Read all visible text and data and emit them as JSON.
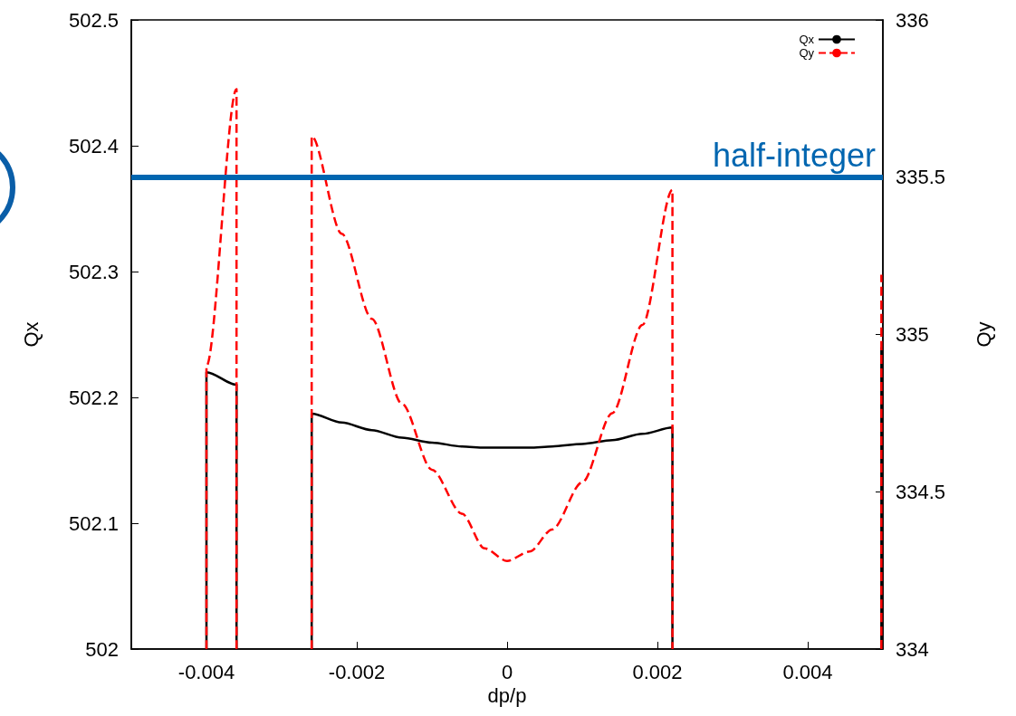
{
  "chart_data": {
    "type": "line",
    "xlabel": "dp/p",
    "ylabel": "Qx",
    "y2label": "Qy",
    "xlim": [
      -0.005,
      0.005
    ],
    "xticks": [
      -0.004,
      -0.002,
      0,
      0.002,
      0.004
    ],
    "ylim": [
      502,
      502.5
    ],
    "yticks": [
      502,
      502.1,
      502.2,
      502.3,
      502.4,
      502.5
    ],
    "y2lim": [
      334,
      336
    ],
    "y2ticks": [
      334,
      334.5,
      335,
      335.5,
      336
    ],
    "grid": false,
    "legend": "top right",
    "marker": "none",
    "series": [
      {
        "name": "Qx",
        "color": "#000000",
        "line_style": "solid",
        "x": [
          -0.004,
          -0.004,
          -0.0036,
          -0.0036,
          -0.0031,
          -0.0026,
          -0.0026,
          -0.0022,
          -0.0018,
          -0.0014,
          -0.001,
          -0.0006,
          -0.0003,
          0,
          0.0003,
          0.0006,
          0.001,
          0.0014,
          0.0018,
          0.0022,
          0.0022,
          0.0035,
          0.00498,
          0.00498
        ],
        "values": [
          502,
          502.22,
          502.21,
          502,
          null,
          502,
          502.187,
          502.18,
          502.174,
          502.168,
          502.164,
          502.161,
          502.16,
          502.16,
          502.16,
          502.161,
          502.163,
          502.166,
          502.171,
          502.176,
          502,
          null,
          502,
          502.24
        ]
      },
      {
        "name": "Qy",
        "color": "#ff0000",
        "line_style": "dashed",
        "axis": "y2",
        "x": [
          -0.004,
          -0.004,
          -0.0036,
          -0.0036,
          -0.0031,
          -0.0026,
          -0.0026,
          -0.0022,
          -0.0018,
          -0.0014,
          -0.001,
          -0.0006,
          -0.0003,
          0,
          0.0003,
          0.0006,
          0.001,
          0.0014,
          0.0018,
          0.0022,
          0.0022,
          0.0035,
          0.00498,
          0.00498
        ],
        "values": [
          334,
          334.9,
          335.78,
          334,
          null,
          334,
          335.63,
          335.32,
          335.05,
          334.78,
          334.57,
          334.43,
          334.32,
          334.28,
          334.31,
          334.38,
          334.53,
          334.75,
          335.03,
          335.46,
          334,
          null,
          334,
          335.19
        ]
      }
    ],
    "ref_lines": [
      {
        "axis": "y2",
        "value": 335.5,
        "label": "half-integer",
        "color": "#0066b0"
      }
    ]
  }
}
